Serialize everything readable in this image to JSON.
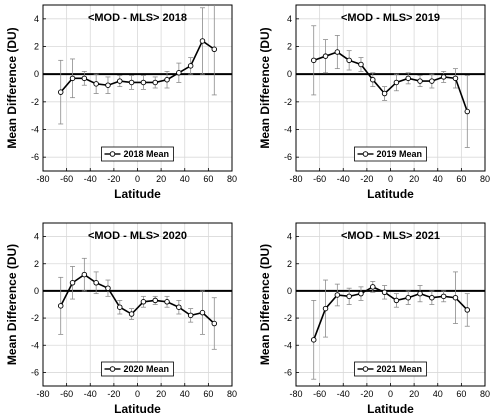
{
  "chart_data": [
    {
      "type": "line",
      "title": "<MOD - MLS> 2018",
      "xlabel": "Latitude",
      "ylabel": "Mean Difference (DU)",
      "xlim": [
        -80,
        80
      ],
      "ylim": [
        -7,
        5
      ],
      "xticks": [
        -80,
        -60,
        -40,
        -20,
        0,
        20,
        40,
        60,
        80
      ],
      "yticks": [
        -6,
        -4,
        -2,
        0,
        2,
        4
      ],
      "grid": true,
      "legend_position": "bottom-center",
      "series": [
        {
          "name": "2018 Mean",
          "x": [
            -65,
            -55,
            -45,
            -35,
            -25,
            -15,
            -5,
            5,
            15,
            25,
            35,
            45,
            55,
            65
          ],
          "y": [
            -1.3,
            -0.3,
            -0.3,
            -0.7,
            -0.8,
            -0.5,
            -0.6,
            -0.6,
            -0.6,
            -0.4,
            0.1,
            0.6,
            2.4,
            1.8
          ],
          "err": [
            2.3,
            1.4,
            0.5,
            0.7,
            0.6,
            0.4,
            0.5,
            0.5,
            0.4,
            0.6,
            0.7,
            0.6,
            2.4,
            3.3
          ]
        }
      ]
    },
    {
      "type": "line",
      "title": "<MOD - MLS> 2019",
      "xlabel": "Latitude",
      "ylabel": "Mean Difference (DU)",
      "xlim": [
        -80,
        80
      ],
      "ylim": [
        -7,
        5
      ],
      "xticks": [
        -80,
        -60,
        -40,
        -20,
        0,
        20,
        40,
        60,
        80
      ],
      "yticks": [
        -6,
        -4,
        -2,
        0,
        2,
        4
      ],
      "grid": true,
      "legend_position": "bottom-center",
      "series": [
        {
          "name": "2019 Mean",
          "x": [
            -65,
            -55,
            -45,
            -35,
            -25,
            -15,
            -5,
            5,
            15,
            25,
            35,
            45,
            55,
            65
          ],
          "y": [
            1.0,
            1.3,
            1.6,
            1.0,
            0.7,
            -0.4,
            -1.4,
            -0.6,
            -0.3,
            -0.5,
            -0.5,
            -0.2,
            -0.3,
            -2.7
          ],
          "err": [
            2.5,
            1.2,
            1.2,
            0.7,
            0.5,
            0.5,
            0.5,
            0.6,
            0.4,
            0.4,
            0.5,
            0.4,
            0.7,
            2.6
          ]
        }
      ]
    },
    {
      "type": "line",
      "title": "<MOD - MLS> 2020",
      "xlabel": "Latitude",
      "ylabel": "Mean Difference (DU)",
      "xlim": [
        -80,
        80
      ],
      "ylim": [
        -7,
        5
      ],
      "xticks": [
        -80,
        -60,
        -40,
        -20,
        0,
        20,
        40,
        60,
        80
      ],
      "yticks": [
        -6,
        -4,
        -2,
        0,
        2,
        4
      ],
      "grid": true,
      "legend_position": "bottom-center",
      "series": [
        {
          "name": "2020 Mean",
          "x": [
            -65,
            -55,
            -45,
            -35,
            -25,
            -15,
            -5,
            5,
            15,
            25,
            35,
            45,
            55,
            65
          ],
          "y": [
            -1.1,
            0.6,
            1.2,
            0.6,
            0.2,
            -1.2,
            -1.7,
            -0.8,
            -0.7,
            -0.8,
            -1.2,
            -1.8,
            -1.6,
            -2.4
          ],
          "err": [
            2.1,
            1.2,
            1.2,
            0.8,
            0.6,
            0.5,
            0.4,
            0.4,
            0.3,
            0.4,
            0.5,
            0.5,
            1.6,
            1.9
          ]
        }
      ]
    },
    {
      "type": "line",
      "title": "<MOD - MLS> 2021",
      "xlabel": "Latitude",
      "ylabel": "Mean Difference (DU)",
      "xlim": [
        -80,
        80
      ],
      "ylim": [
        -7,
        5
      ],
      "xticks": [
        -80,
        -60,
        -40,
        -20,
        0,
        20,
        40,
        60,
        80
      ],
      "yticks": [
        -6,
        -4,
        -2,
        0,
        2,
        4
      ],
      "grid": true,
      "legend_position": "bottom-center",
      "series": [
        {
          "name": "2021 Mean",
          "x": [
            -65,
            -55,
            -45,
            -35,
            -25,
            -15,
            -5,
            5,
            15,
            25,
            35,
            45,
            55,
            65
          ],
          "y": [
            -3.6,
            -1.3,
            -0.3,
            -0.4,
            -0.2,
            0.3,
            -0.1,
            -0.7,
            -0.5,
            -0.2,
            -0.5,
            -0.4,
            -0.5,
            -1.4
          ],
          "err": [
            2.9,
            2.1,
            0.8,
            0.6,
            0.5,
            0.4,
            0.5,
            0.5,
            0.5,
            0.6,
            0.5,
            0.4,
            1.9,
            1.2
          ]
        }
      ]
    }
  ]
}
